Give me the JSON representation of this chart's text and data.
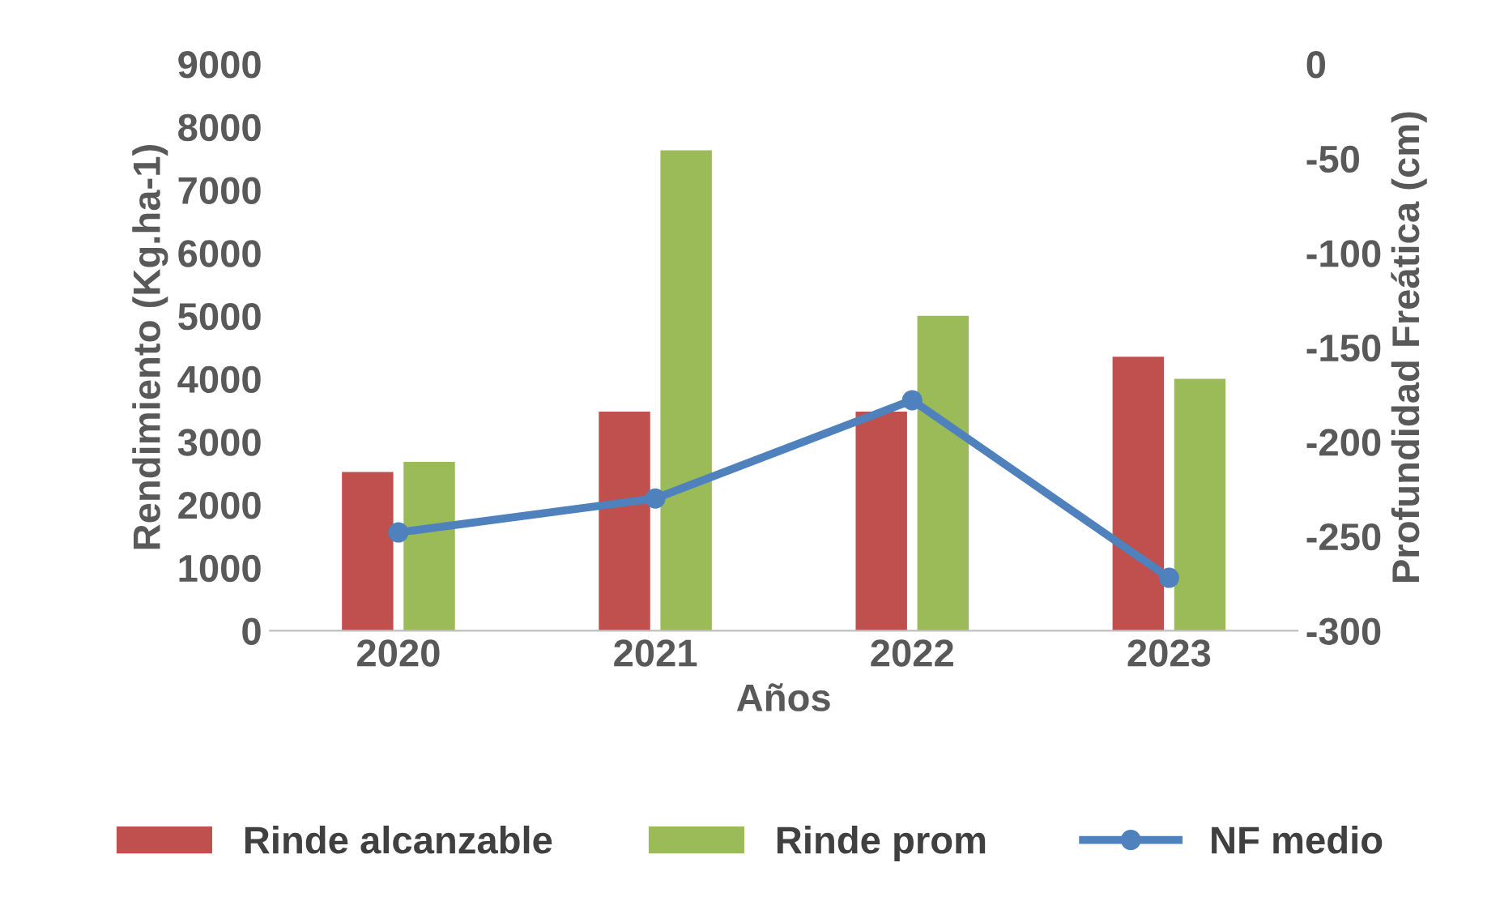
{
  "chart_data": {
    "type": "bar",
    "xlabel": "Años",
    "ylabel": "Rendimiento (Kg.ha-1)",
    "y2label": "Profundidad Freática (cm)",
    "categories": [
      "2020",
      "2021",
      "2022",
      "2023"
    ],
    "series": [
      {
        "name": "Rinde alcanzable",
        "color": "#c0504d",
        "values": [
          2520,
          3480,
          3480,
          4350
        ]
      },
      {
        "name": "Rinde prom",
        "color": "#9bbb59",
        "values": [
          2680,
          7630,
          5000,
          4000
        ]
      },
      {
        "name": "NF medio",
        "type": "line",
        "axis": "y2",
        "color": "#4f81bd",
        "marker": "circle",
        "values": [
          -248,
          -230,
          -178,
          -272
        ]
      }
    ],
    "ylim": [
      0,
      9000
    ],
    "yticks": [
      0,
      1000,
      2000,
      3000,
      4000,
      5000,
      6000,
      7000,
      8000,
      9000
    ],
    "y2lim": [
      -300,
      0
    ],
    "y2ticks": [
      -300,
      -250,
      -200,
      -150,
      -100,
      -50,
      0
    ],
    "grid": false,
    "legend": "bottom"
  }
}
